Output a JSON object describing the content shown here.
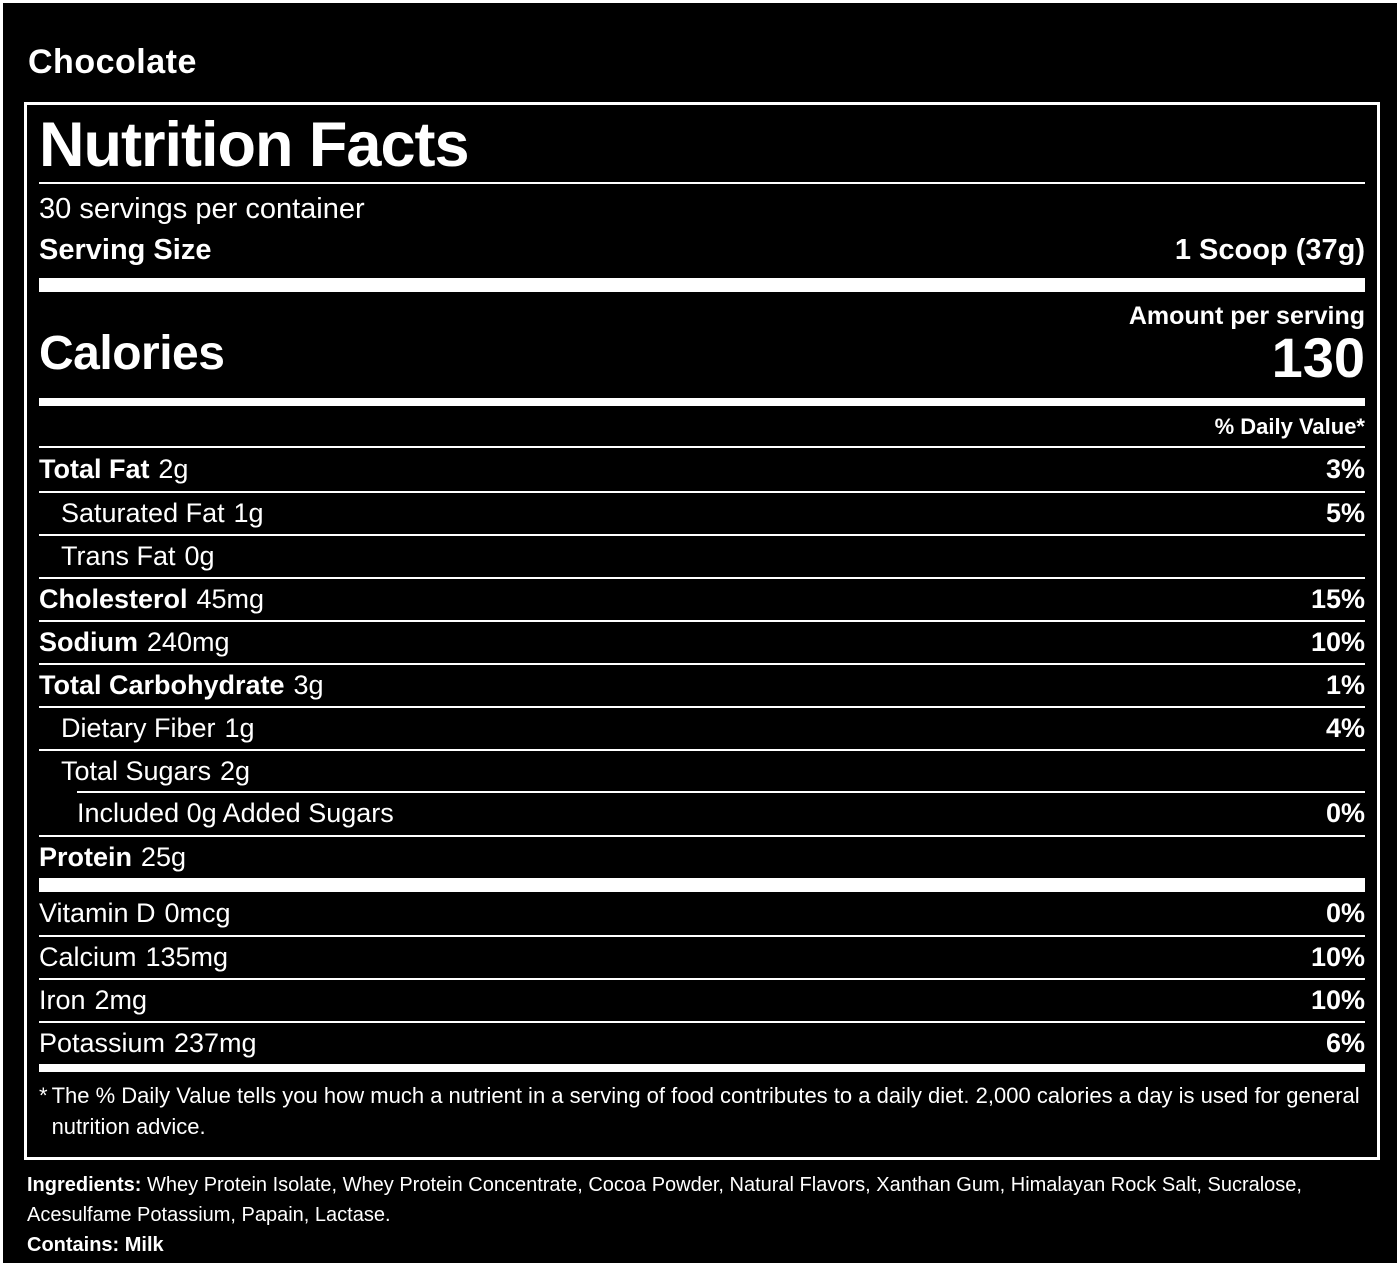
{
  "page": {
    "flavor": "Chocolate"
  },
  "label": {
    "title": "Nutrition Facts",
    "servings_per_container": "30 servings per container",
    "serving_size_label": "Serving Size",
    "serving_size_value": "1 Scoop (37g)",
    "amount_per_serving": "Amount per serving",
    "calories_label": "Calories",
    "calories_value": "130",
    "daily_value_header": "% Daily Value*",
    "nutrients": [
      {
        "name": "Total Fat",
        "amount": "2g",
        "dv": "3%"
      },
      {
        "name": "Saturated Fat",
        "amount": "1g",
        "dv": "5%"
      },
      {
        "name": "Trans Fat",
        "amount": "0g",
        "dv": ""
      },
      {
        "name": "Cholesterol",
        "amount": "45mg",
        "dv": "15%"
      },
      {
        "name": "Sodium",
        "amount": "240mg",
        "dv": "10%"
      },
      {
        "name": "Total Carbohydrate",
        "amount": "3g",
        "dv": "1%"
      },
      {
        "name": "Dietary Fiber",
        "amount": "1g",
        "dv": "4%"
      },
      {
        "name": "Total Sugars",
        "amount": "2g",
        "dv": ""
      },
      {
        "name": "Included 0g Added Sugars",
        "amount": "",
        "dv": "0%"
      },
      {
        "name": "Protein",
        "amount": "25g",
        "dv": ""
      }
    ],
    "micronutrients": [
      {
        "name": "Vitamin D",
        "amount": "0mcg",
        "dv": "0%"
      },
      {
        "name": "Calcium",
        "amount": "135mg",
        "dv": "10%"
      },
      {
        "name": "Iron",
        "amount": "2mg",
        "dv": "10%"
      },
      {
        "name": "Potassium",
        "amount": "237mg",
        "dv": "6%"
      }
    ],
    "footnote_marker": "*",
    "footnote": "The % Daily Value tells you how much a nutrient in a serving of food contributes to a daily diet. 2,000 calories a day is used for general nutrition advice."
  },
  "ingredients": {
    "label": "Ingredients:",
    "text": " Whey Protein Isolate, Whey Protein Concentrate, Cocoa Powder, Natural Flavors, Xanthan Gum, Himalayan Rock Salt, Sucralose, Acesulfame Potassium, Papain, Lactase.",
    "contains": "Contains: Milk"
  },
  "colors": {
    "background": "#000000",
    "foreground": "#ffffff"
  }
}
